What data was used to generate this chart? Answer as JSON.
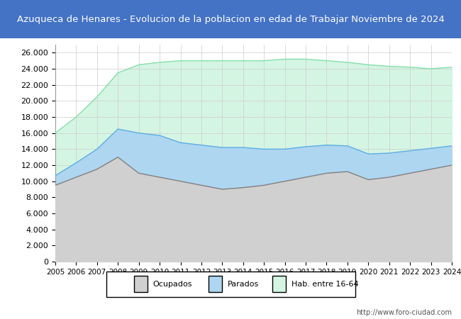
{
  "title": "Azuqueca de Henares - Evolucion de la poblacion en edad de Trabajar Noviembre de 2024",
  "title_bg": "#4472c4",
  "title_color": "#ffffff",
  "xlabel": "",
  "ylabel": "",
  "ylim": [
    0,
    27000
  ],
  "yticks": [
    0,
    2000,
    4000,
    6000,
    8000,
    10000,
    12000,
    14000,
    16000,
    18000,
    20000,
    22000,
    24000,
    26000
  ],
  "years": [
    2005,
    2006,
    2007,
    2008,
    2009,
    2010,
    2011,
    2012,
    2013,
    2014,
    2015,
    2016,
    2017,
    2018,
    2019,
    2020,
    2021,
    2022,
    2023,
    2024
  ],
  "ocupados": [
    9500,
    10500,
    11500,
    13000,
    11000,
    10500,
    10000,
    9500,
    9000,
    9200,
    9500,
    10000,
    10500,
    11000,
    11200,
    10200,
    10500,
    11000,
    11500,
    12000
  ],
  "parados": [
    1200,
    1800,
    2500,
    3500,
    5000,
    5200,
    4800,
    5000,
    5200,
    5000,
    4500,
    4000,
    3800,
    3500,
    3200,
    3200,
    3000,
    2800,
    2600,
    2400
  ],
  "hab_16_64": [
    16000,
    18000,
    20500,
    23500,
    24500,
    24800,
    25000,
    25000,
    25000,
    25000,
    25000,
    25200,
    25200,
    25000,
    24800,
    24500,
    24300,
    24200,
    24000,
    24200
  ],
  "color_ocupados": "#d0d0d0",
  "color_parados": "#aed6f1",
  "color_hab": "#d5f5e3",
  "line_ocupados": "#808080",
  "line_parados": "#5dade2",
  "line_hab": "#82e0aa",
  "legend_labels": [
    "Ocupados",
    "Parados",
    "Hab. entre 16-64"
  ],
  "watermark": "http://www.foro-ciudad.com",
  "background_color": "#ffffff",
  "plot_bg": "#ffffff"
}
